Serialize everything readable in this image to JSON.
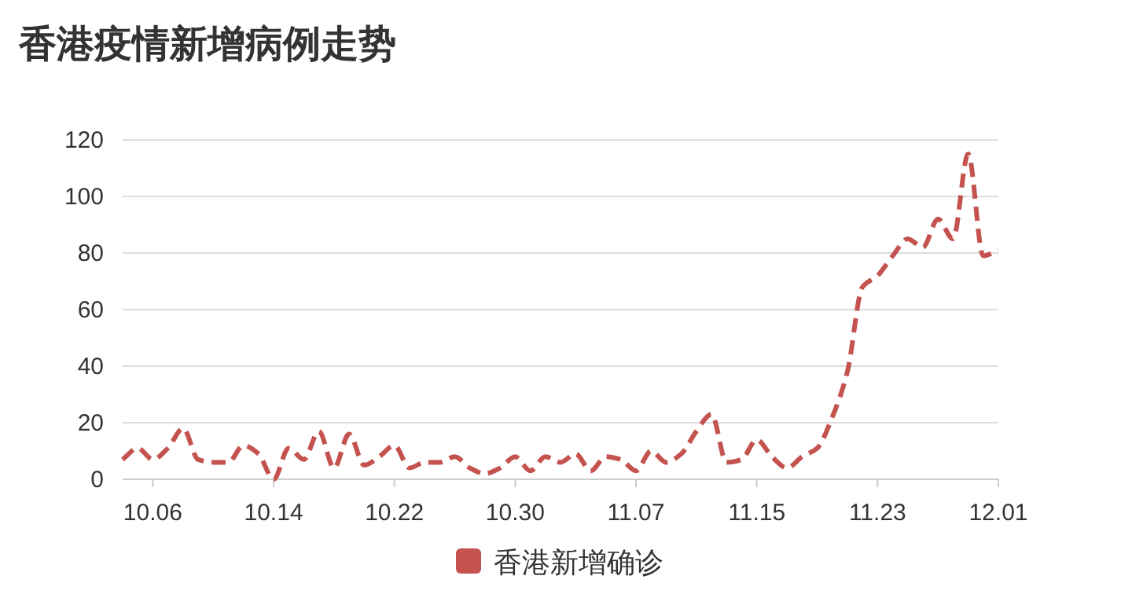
{
  "chart_data": {
    "type": "line",
    "title": "香港疫情新增病例走势",
    "categories": [
      null,
      null,
      "10.06",
      null,
      null,
      null,
      null,
      null,
      null,
      null,
      "10.14",
      null,
      null,
      null,
      null,
      null,
      null,
      null,
      "10.22",
      null,
      null,
      null,
      null,
      null,
      null,
      null,
      "10.30",
      null,
      null,
      null,
      null,
      null,
      null,
      null,
      "11.07",
      null,
      null,
      null,
      null,
      null,
      null,
      null,
      "11.15",
      null,
      null,
      null,
      null,
      null,
      null,
      null,
      "11.23",
      null,
      null,
      null,
      null,
      null,
      null,
      null,
      "12.01"
    ],
    "series": [
      {
        "name": "香港新增确诊",
        "color": "#c4524e",
        "values": [
          7,
          11,
          7,
          11,
          18,
          7,
          6,
          6,
          12,
          9,
          0,
          11,
          7,
          17,
          4,
          16,
          5,
          8,
          12,
          4,
          6,
          6,
          8,
          4,
          2,
          4,
          8,
          3,
          8,
          6,
          9,
          3,
          8,
          7,
          3,
          10,
          6,
          9,
          17,
          23,
          6,
          7,
          14,
          8,
          4,
          8,
          11,
          22,
          38,
          68,
          72,
          79,
          85,
          82,
          92,
          85,
          115,
          79,
          81
        ]
      }
    ],
    "ylim": [
      0,
      120
    ],
    "yticks": [
      0,
      20,
      40,
      60,
      80,
      100,
      120
    ],
    "grid": "y",
    "legend": "bottom",
    "line_style": "dashed",
    "marker": "none"
  }
}
